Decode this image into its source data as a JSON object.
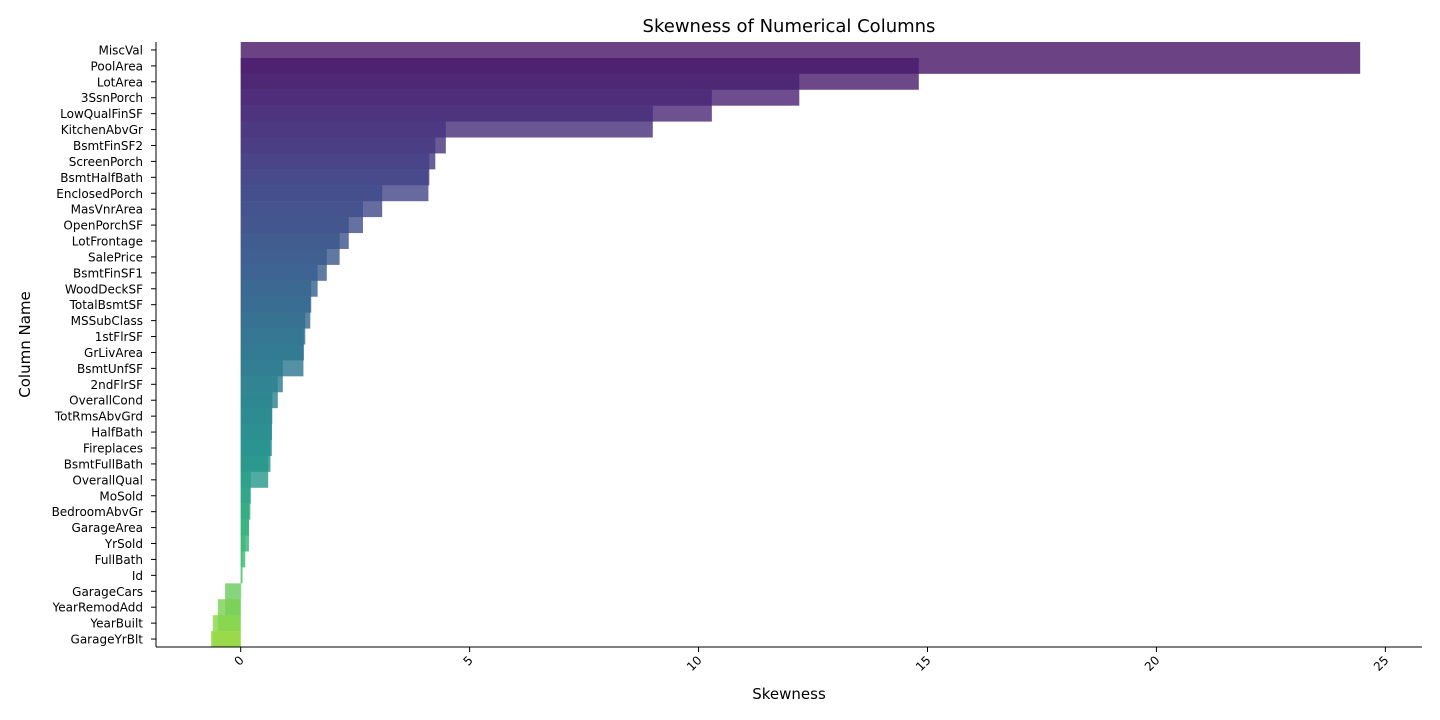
{
  "chart_data": {
    "type": "bar",
    "orientation": "horizontal",
    "title": "Skewness of Numerical Columns",
    "xlabel": "Skewness",
    "ylabel": "Column Name",
    "xlim": [
      -1.85,
      25.8
    ],
    "xticks": [
      0,
      5,
      10,
      15,
      20,
      25
    ],
    "xtick_labels": [
      "0",
      "5",
      "10",
      "15",
      "20",
      "25"
    ],
    "grid": false,
    "colormap": "viridis",
    "categories": [
      "MiscVal",
      "PoolArea",
      "LotArea",
      "3SsnPorch",
      "LowQualFinSF",
      "KitchenAbvGr",
      "BsmtFinSF2",
      "ScreenPorch",
      "BsmtHalfBath",
      "EnclosedPorch",
      "MasVnrArea",
      "OpenPorchSF",
      "LotFrontage",
      "SalePrice",
      "BsmtFinSF1",
      "WoodDeckSF",
      "TotalBsmtSF",
      "MSSubClass",
      "1stFlrSF",
      "GrLivArea",
      "BsmtUnfSF",
      "2ndFlrSF",
      "OverallCond",
      "TotRmsAbvGrd",
      "HalfBath",
      "Fireplaces",
      "BsmtFullBath",
      "OverallQual",
      "MoSold",
      "BedroomAbvGr",
      "GarageArea",
      "YrSold",
      "FullBath",
      "Id",
      "GarageCars",
      "YearRemodAdd",
      "YearBuilt",
      "GarageYrBlt"
    ],
    "values": [
      24.45,
      14.81,
      12.2,
      10.29,
      9.0,
      4.48,
      4.25,
      4.12,
      4.1,
      3.09,
      2.67,
      2.36,
      2.16,
      1.88,
      1.68,
      1.54,
      1.52,
      1.41,
      1.38,
      1.37,
      0.92,
      0.81,
      0.69,
      0.68,
      0.68,
      0.65,
      0.6,
      0.22,
      0.21,
      0.18,
      0.18,
      0.1,
      0.04,
      0.0,
      -0.34,
      -0.5,
      -0.61,
      -0.65
    ]
  }
}
